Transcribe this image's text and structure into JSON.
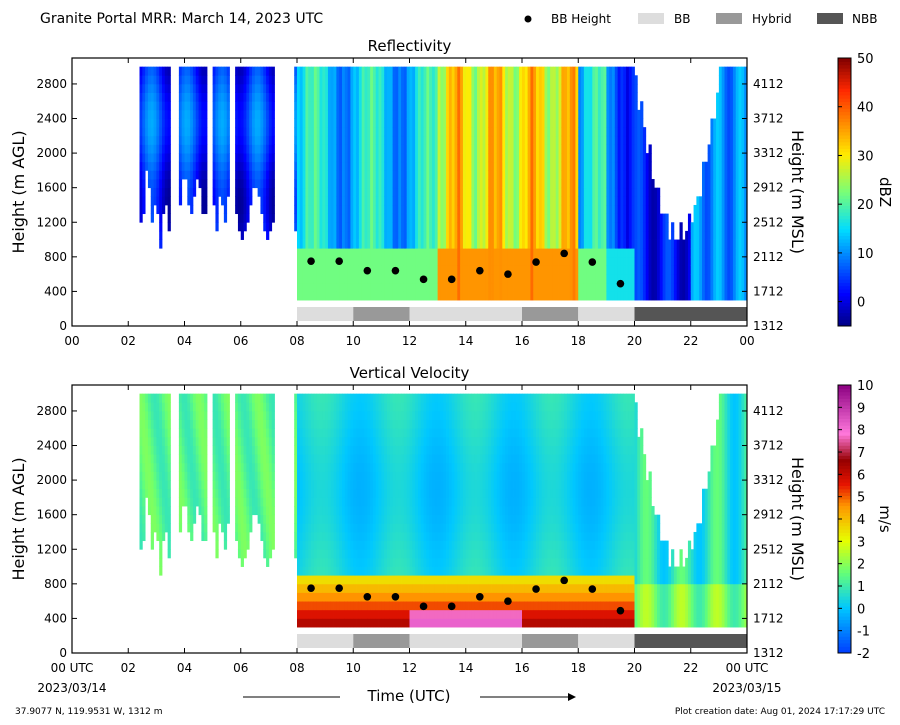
{
  "header": {
    "title": "Granite Portal MRR:  March 14, 2023 UTC",
    "legend": [
      {
        "label": "BB Height",
        "kind": "dot",
        "color": "#000000"
      },
      {
        "label": "BB",
        "kind": "box",
        "color": "#dddddd"
      },
      {
        "label": "Hybrid",
        "kind": "box",
        "color": "#999999"
      },
      {
        "label": "NBB",
        "kind": "box",
        "color": "#555555"
      }
    ]
  },
  "footer": {
    "location": "37.9077 N, 119.9531 W, 1312 m",
    "created": "Plot creation date: Aug 01, 2024 17:17:29 UTC",
    "xlabel": "Time (UTC)",
    "start_date": "2023/03/14",
    "end_date": "2023/03/15"
  },
  "chart_data": [
    {
      "type": "heatmap",
      "title": "Reflectivity",
      "ylabel": "Height (m AGL)",
      "ylabel_right": "Height (m MSL)",
      "colorbar_label": "dBZ",
      "colorbar_range": [
        -5,
        50
      ],
      "colorbar_ticks": [
        "0",
        "10",
        "20",
        "30",
        "40",
        "50"
      ],
      "x_ticks": [
        "00",
        "02",
        "04",
        "06",
        "08",
        "10",
        "12",
        "14",
        "16",
        "18",
        "20",
        "22",
        "00"
      ],
      "xlim": [
        0,
        24
      ],
      "ylim": [
        0,
        3100
      ],
      "y_ticks": [
        "0",
        "400",
        "800",
        "1200",
        "1600",
        "2000",
        "2400",
        "2800"
      ],
      "y_ticks_right": [
        "1312",
        "1712",
        "2112",
        "2512",
        "2912",
        "3312",
        "3712",
        "4112"
      ],
      "bb_height": {
        "hour": [
          8.5,
          9.5,
          10.5,
          11.5,
          12.5,
          13.5,
          14.5,
          15.5,
          16.5,
          17.5,
          18.5,
          19.5
        ],
        "height_m": [
          750,
          750,
          640,
          640,
          540,
          540,
          640,
          600,
          740,
          840,
          740,
          490
        ]
      },
      "bb_type": [
        {
          "start": 8,
          "end": 10,
          "type": "BB"
        },
        {
          "start": 10,
          "end": 12,
          "type": "Hybrid"
        },
        {
          "start": 12,
          "end": 16,
          "type": "BB"
        },
        {
          "start": 16,
          "end": 18,
          "type": "Hybrid"
        },
        {
          "start": 18,
          "end": 20,
          "type": "BB"
        },
        {
          "start": 20,
          "end": 24,
          "type": "NBB"
        }
      ]
    },
    {
      "type": "heatmap",
      "title": "Vertical Velocity",
      "ylabel": "Height (m AGL)",
      "ylabel_right": "Height (m MSL)",
      "colorbar_label": "m/s",
      "colorbar_range": [
        -2,
        10
      ],
      "colorbar_ticks": [
        "-2",
        "-1",
        "0",
        "1",
        "2",
        "3",
        "4",
        "5",
        "6",
        "7",
        "8",
        "9",
        "10"
      ],
      "x_ticks": [
        "00 UTC",
        "02",
        "04",
        "06",
        "08",
        "10",
        "12",
        "14",
        "16",
        "18",
        "20",
        "22",
        "00 UTC"
      ],
      "xlim": [
        0,
        24
      ],
      "ylim": [
        0,
        3100
      ],
      "y_ticks": [
        "0",
        "400",
        "800",
        "1200",
        "1600",
        "2000",
        "2400",
        "2800"
      ],
      "y_ticks_right": [
        "1312",
        "1712",
        "2112",
        "2512",
        "2912",
        "3312",
        "3712",
        "4112"
      ],
      "bb_height": {
        "hour": [
          8.5,
          9.5,
          10.5,
          11.5,
          12.5,
          13.5,
          14.5,
          15.5,
          16.5,
          17.5,
          18.5,
          19.5
        ],
        "height_m": [
          750,
          750,
          650,
          650,
          540,
          540,
          650,
          600,
          740,
          840,
          740,
          490
        ]
      },
      "bb_type": [
        {
          "start": 8,
          "end": 10,
          "type": "BB"
        },
        {
          "start": 10,
          "end": 12,
          "type": "Hybrid"
        },
        {
          "start": 12,
          "end": 16,
          "type": "BB"
        },
        {
          "start": 16,
          "end": 18,
          "type": "Hybrid"
        },
        {
          "start": 18,
          "end": 20,
          "type": "BB"
        },
        {
          "start": 20,
          "end": 24,
          "type": "NBB"
        }
      ]
    }
  ]
}
